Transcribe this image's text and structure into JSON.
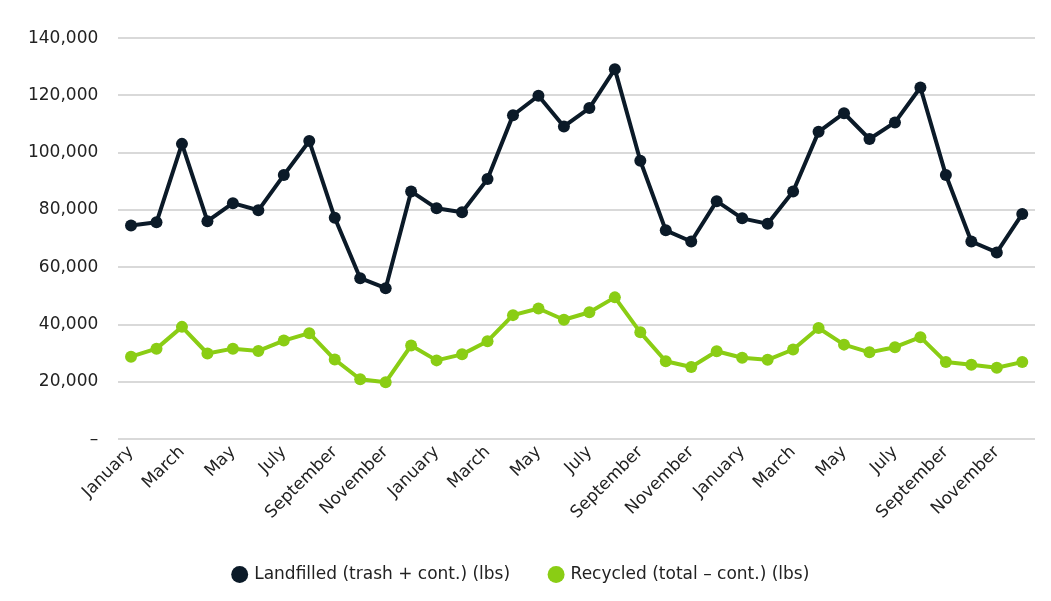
{
  "chart_data": {
    "type": "line",
    "categories": [
      "January",
      null,
      "March",
      null,
      "May",
      null,
      "July",
      null,
      "September",
      null,
      "November",
      null,
      "January",
      null,
      "March",
      null,
      "May",
      null,
      "July",
      null,
      "September",
      null,
      "November",
      null,
      "January",
      null,
      "March",
      null,
      "May",
      null,
      "July",
      null,
      "September",
      null,
      "November",
      null
    ],
    "series": [
      {
        "name": "Landfilled (trash + cont.) (lbs)",
        "color": "#0b1a28",
        "values": [
          74600,
          75700,
          103100,
          76100,
          82400,
          79900,
          92200,
          104100,
          77300,
          56200,
          52700,
          86500,
          80600,
          79200,
          90800,
          113100,
          119900,
          109200,
          115600,
          129200,
          97200,
          72900,
          69000,
          83100,
          77100,
          75200,
          86500,
          107300,
          113800,
          104800,
          110600,
          122800,
          92200,
          69000,
          65200,
          78600
        ]
      },
      {
        "name": "Recycled (total – cont.) (lbs)",
        "color": "#8acd14",
        "values": [
          28800,
          31600,
          39200,
          29900,
          31600,
          30800,
          34400,
          37000,
          27800,
          20900,
          19900,
          32700,
          27500,
          29600,
          34200,
          43300,
          45600,
          41700,
          44300,
          49500,
          37300,
          27200,
          25200,
          30700,
          28400,
          27700,
          31300,
          38800,
          33000,
          30300,
          32100,
          35600,
          26900,
          26000,
          24900,
          26900
        ]
      }
    ],
    "ylim": [
      0,
      140000
    ],
    "yticks": [
      {
        "value": 0,
        "label": "–"
      },
      {
        "value": 20000,
        "label": "20,000"
      },
      {
        "value": 40000,
        "label": "40,000"
      },
      {
        "value": 60000,
        "label": "60,000"
      },
      {
        "value": 80000,
        "label": "80,000"
      },
      {
        "value": 100000,
        "label": "100,000"
      },
      {
        "value": 120000,
        "label": "120,000"
      },
      {
        "value": 140000,
        "label": "140,000"
      }
    ],
    "grid": "y",
    "legend": "bottom",
    "marker": "circle",
    "line_style": "solid"
  }
}
